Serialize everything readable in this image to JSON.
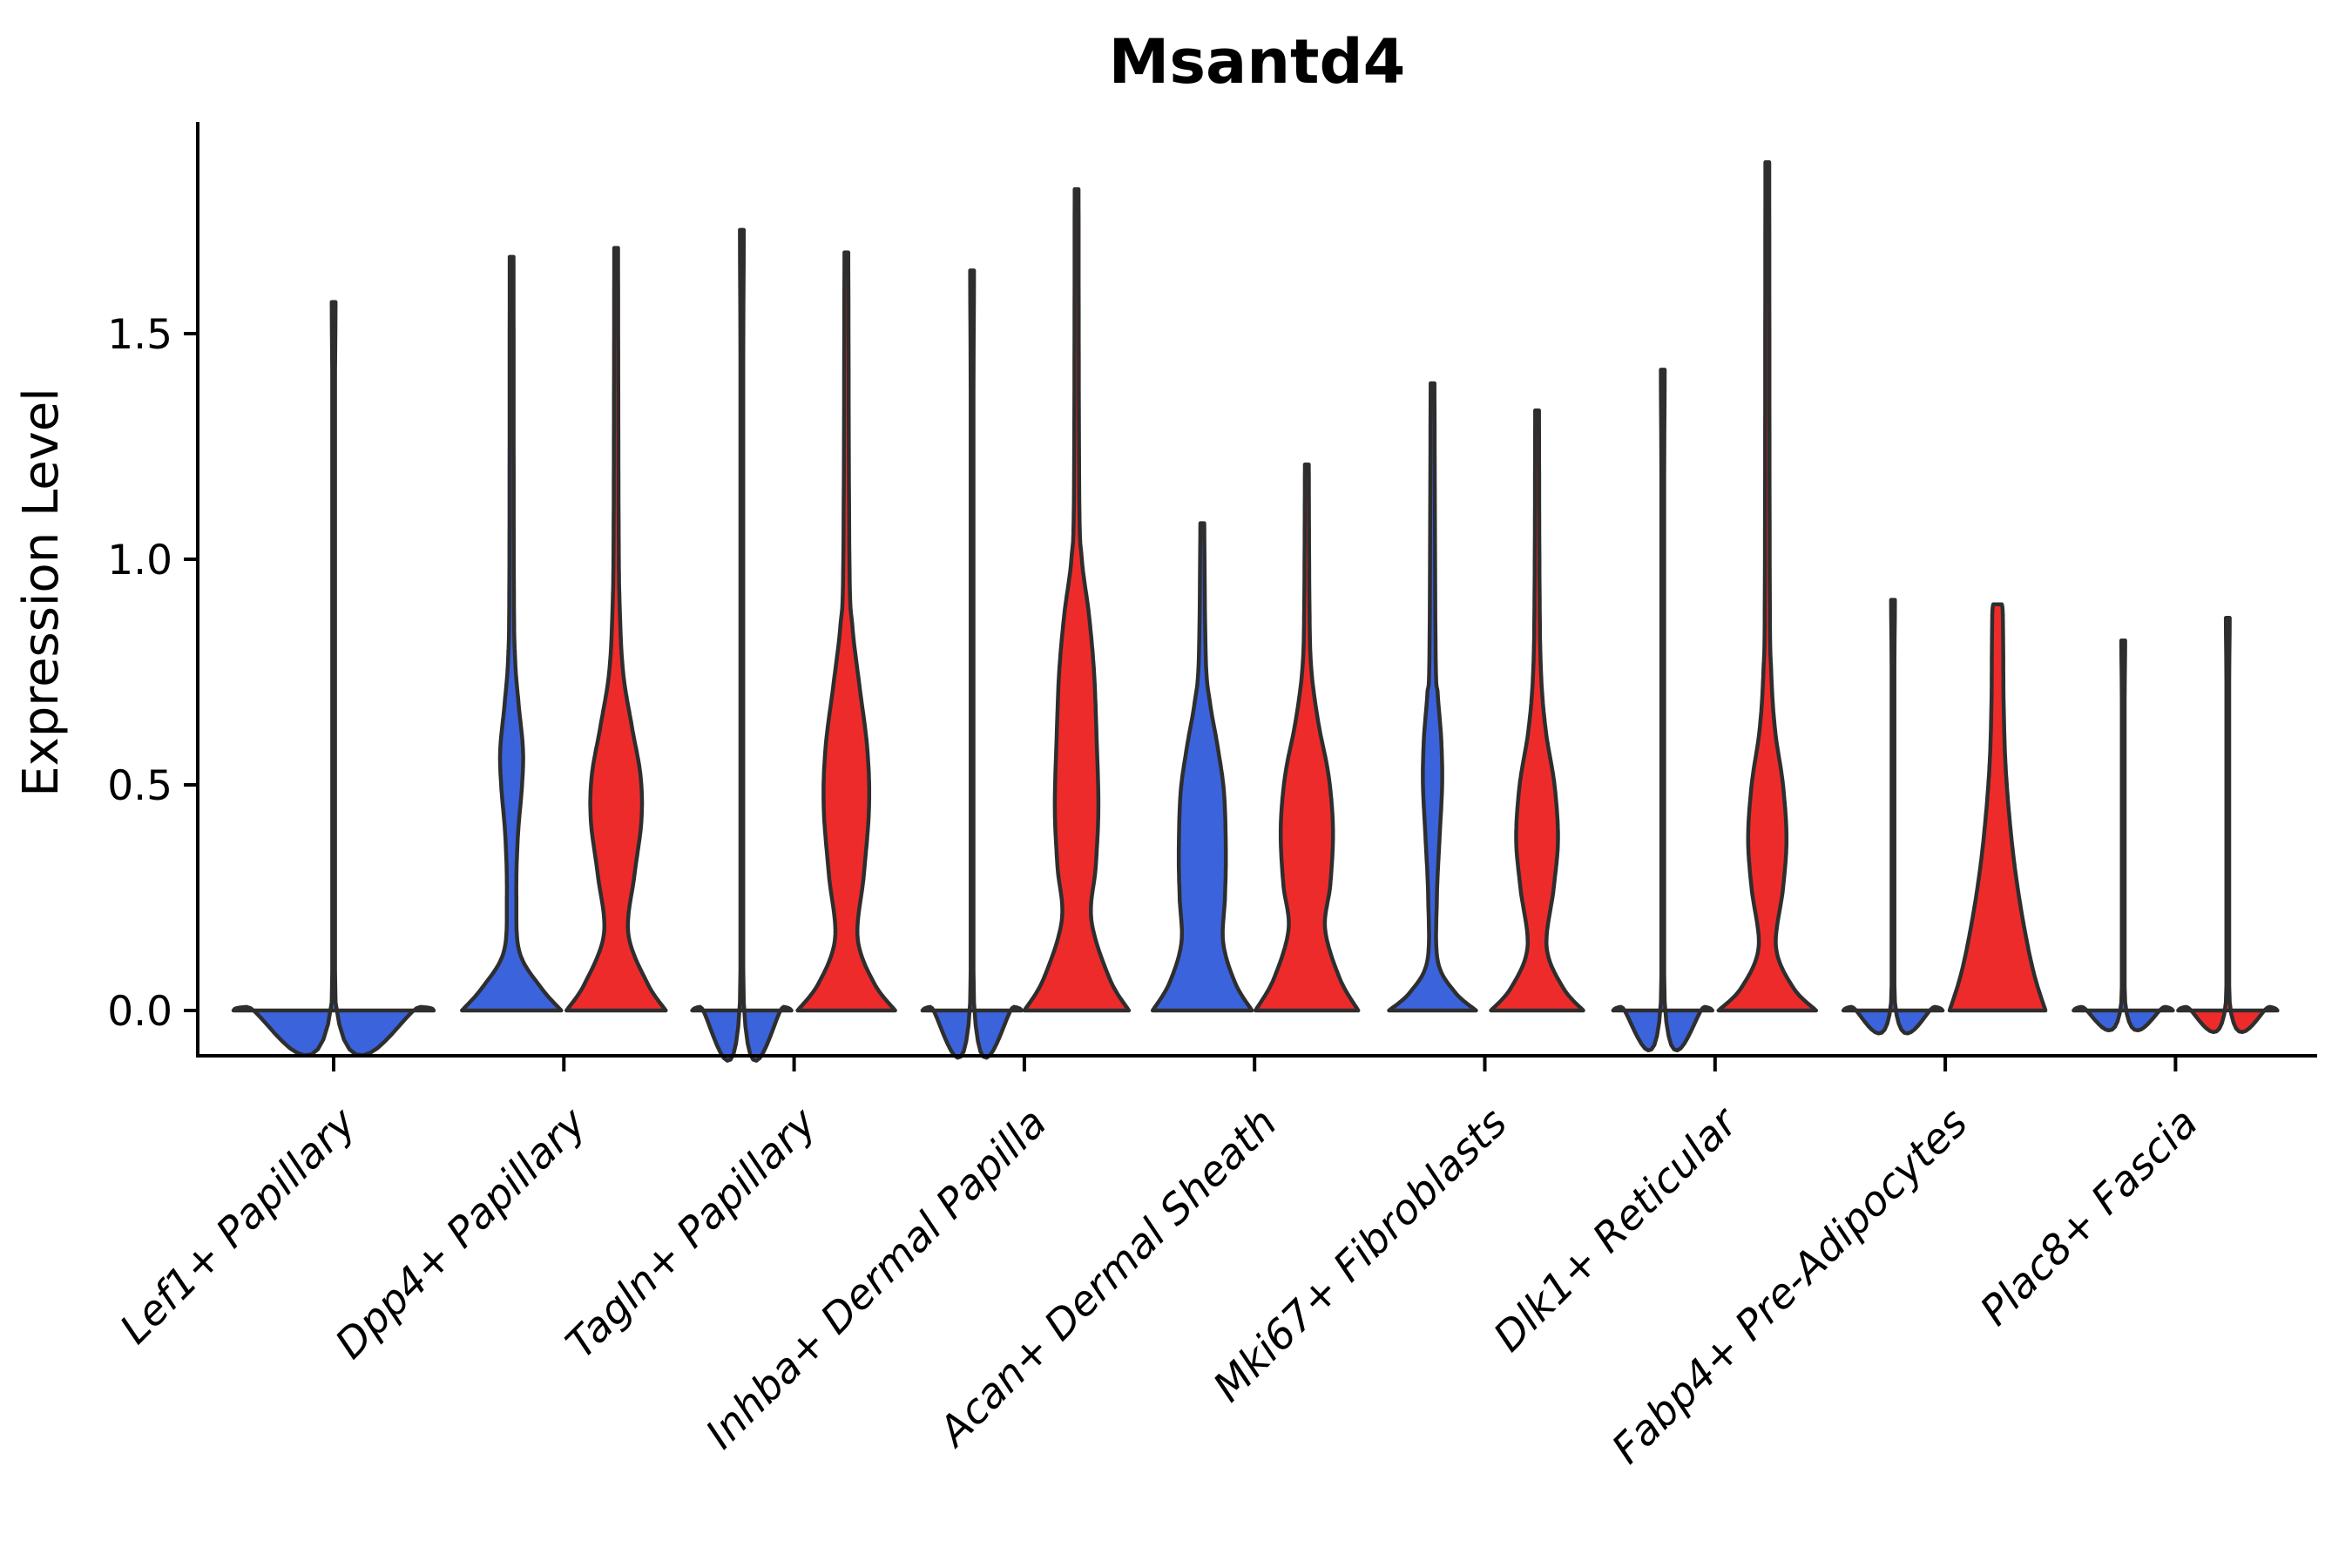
{
  "title": "Msantd4",
  "y_axis": {
    "label": "Expression Level",
    "tick_labels": [
      "0.0",
      "0.5",
      "1.0",
      "1.5"
    ]
  },
  "colors": {
    "split_left_blue": "#3B63DC",
    "split_right_red": "#EE2B2B",
    "violin_outline": "#2E2E2E",
    "axis": "#000000",
    "background": "#ffffff"
  },
  "chart_data": {
    "type": "violin",
    "title": "Msantd4",
    "xlabel": "",
    "ylabel": "Expression Level",
    "ylim": [
      0,
      1.96
    ],
    "yticks": [
      0.0,
      0.5,
      1.0,
      1.5
    ],
    "ytick_labels": [
      "0.0",
      "0.5",
      "1.0",
      "1.5"
    ],
    "x_tick_rotation_deg": 45,
    "grid": false,
    "legend_position": "none",
    "categories": [
      "Lef1+ Papillary",
      "Dpp4+ Papillary",
      "Tagln+ Papillary",
      "Inhba+ Dermal Papilla",
      "Acan+ Dermal Sheath",
      "Mki67+ Fibroblasts",
      "Dlk1+ Reticular",
      "Fabp4+ Pre-Adipocytes",
      "Plac8+ Fascia"
    ],
    "profile_units": "pairs of [expression_value, half_width_px]; half_width 57px = full split-violin slot, 115px = full-width violin",
    "groups": [
      {
        "category": "Lef1+ Papillary",
        "violins": [
          {
            "side": "full",
            "color": "#3B63DC",
            "max": 1.57,
            "profile": [
              [
                0,
                115
              ],
              [
                0.008,
                100
              ],
              [
                0.018,
                2.2
              ],
              [
                1.57,
                2.2
              ]
            ]
          }
        ]
      },
      {
        "category": "Dpp4+ Papillary",
        "violins": [
          {
            "side": "left",
            "color": "#3B63DC",
            "max": 1.67,
            "profile": [
              [
                0,
                57
              ],
              [
                0.05,
                34
              ],
              [
                0.13,
                9
              ],
              [
                0.25,
                5.5
              ],
              [
                0.38,
                7
              ],
              [
                0.5,
                12
              ],
              [
                0.58,
                13
              ],
              [
                0.68,
                8
              ],
              [
                0.78,
                4
              ],
              [
                0.95,
                2.6
              ],
              [
                1.67,
                2.2
              ]
            ]
          },
          {
            "side": "right",
            "color": "#EE2B2B",
            "max": 1.69,
            "profile": [
              [
                0,
                57
              ],
              [
                0.06,
                36
              ],
              [
                0.17,
                14
              ],
              [
                0.3,
                21
              ],
              [
                0.42,
                29
              ],
              [
                0.52,
                28
              ],
              [
                0.63,
                18
              ],
              [
                0.75,
                8
              ],
              [
                0.9,
                4
              ],
              [
                1.1,
                2.8
              ],
              [
                1.69,
                2.2
              ]
            ]
          }
        ]
      },
      {
        "category": "Tagln+ Papillary",
        "violins": [
          {
            "side": "left",
            "color": "#3B63DC",
            "max": 1.73,
            "profile": [
              [
                0,
                57
              ],
              [
                0.008,
                48
              ],
              [
                0.018,
                2.2
              ],
              [
                1.73,
                2.2
              ]
            ]
          },
          {
            "side": "right",
            "color": "#EE2B2B",
            "max": 1.68,
            "profile": [
              [
                0,
                56
              ],
              [
                0.06,
                32
              ],
              [
                0.16,
                13
              ],
              [
                0.3,
                20
              ],
              [
                0.45,
                26
              ],
              [
                0.58,
                24
              ],
              [
                0.72,
                15
              ],
              [
                0.85,
                7
              ],
              [
                1.0,
                3.5
              ],
              [
                1.68,
                2.2
              ]
            ]
          }
        ]
      },
      {
        "category": "Inhba+ Dermal Papilla",
        "violins": [
          {
            "side": "left",
            "color": "#3B63DC",
            "max": 1.64,
            "profile": [
              [
                0,
                57
              ],
              [
                0.008,
                48
              ],
              [
                0.018,
                2.2
              ],
              [
                1.64,
                2.2
              ]
            ]
          },
          {
            "side": "right",
            "color": "#EE2B2B",
            "max": 1.82,
            "profile": [
              [
                0,
                60
              ],
              [
                0.07,
                38
              ],
              [
                0.2,
                17
              ],
              [
                0.32,
                22
              ],
              [
                0.45,
                25
              ],
              [
                0.6,
                23
              ],
              [
                0.75,
                20
              ],
              [
                0.88,
                14
              ],
              [
                1.0,
                6
              ],
              [
                1.15,
                3
              ],
              [
                1.82,
                2.2
              ]
            ]
          }
        ]
      },
      {
        "category": "Acan+ Dermal Sheath",
        "violins": [
          {
            "side": "left",
            "color": "#3B63DC",
            "max": 1.08,
            "profile": [
              [
                0,
                57
              ],
              [
                0.06,
                38
              ],
              [
                0.15,
                24
              ],
              [
                0.25,
                26
              ],
              [
                0.35,
                27
              ],
              [
                0.48,
                25
              ],
              [
                0.58,
                18
              ],
              [
                0.68,
                9
              ],
              [
                0.78,
                4
              ],
              [
                1.08,
                2.2
              ]
            ]
          },
          {
            "side": "right",
            "color": "#EE2B2B",
            "max": 1.21,
            "profile": [
              [
                0,
                59
              ],
              [
                0.07,
                38
              ],
              [
                0.18,
                21
              ],
              [
                0.28,
                27
              ],
              [
                0.4,
                30
              ],
              [
                0.52,
                25
              ],
              [
                0.64,
                13
              ],
              [
                0.76,
                5
              ],
              [
                0.9,
                3
              ],
              [
                1.21,
                2.2
              ]
            ]
          }
        ]
      },
      {
        "category": "Mki67+ Fibroblasts",
        "violins": [
          {
            "side": "left",
            "color": "#3B63DC",
            "max": 1.39,
            "profile": [
              [
                0,
                50
              ],
              [
                0.04,
                26
              ],
              [
                0.11,
                6
              ],
              [
                0.25,
                5
              ],
              [
                0.38,
                8
              ],
              [
                0.5,
                11
              ],
              [
                0.6,
                10
              ],
              [
                0.7,
                6
              ],
              [
                0.8,
                3.5
              ],
              [
                1.39,
                2.2
              ]
            ]
          },
          {
            "side": "right",
            "color": "#EE2B2B",
            "max": 1.33,
            "profile": [
              [
                0,
                53
              ],
              [
                0.05,
                30
              ],
              [
                0.14,
                11
              ],
              [
                0.27,
                19
              ],
              [
                0.38,
                24
              ],
              [
                0.5,
                20
              ],
              [
                0.62,
                10
              ],
              [
                0.75,
                4.5
              ],
              [
                0.95,
                2.8
              ],
              [
                1.33,
                2.2
              ]
            ]
          }
        ]
      },
      {
        "category": "Dlk1+ Reticular",
        "violins": [
          {
            "side": "left",
            "color": "#3B63DC",
            "max": 1.42,
            "profile": [
              [
                0,
                57
              ],
              [
                0.008,
                48
              ],
              [
                0.018,
                2.2
              ],
              [
                1.42,
                2.2
              ]
            ]
          },
          {
            "side": "right",
            "color": "#EE2B2B",
            "max": 1.88,
            "profile": [
              [
                0,
                56
              ],
              [
                0.05,
                30
              ],
              [
                0.14,
                10
              ],
              [
                0.27,
                18
              ],
              [
                0.38,
                22
              ],
              [
                0.5,
                18
              ],
              [
                0.62,
                9
              ],
              [
                0.75,
                4.5
              ],
              [
                0.95,
                2.8
              ],
              [
                1.88,
                2.2
              ]
            ]
          }
        ]
      },
      {
        "category": "Fabp4+ Pre-Adipocytes",
        "violins": [
          {
            "side": "left",
            "color": "#3B63DC",
            "max": 0.91,
            "profile": [
              [
                0,
                57
              ],
              [
                0.008,
                48
              ],
              [
                0.018,
                2.2
              ],
              [
                0.91,
                2.2
              ]
            ]
          },
          {
            "side": "right",
            "color": "#EE2B2B",
            "max": 0.9,
            "profile": [
              [
                0,
                55
              ],
              [
                0.08,
                42
              ],
              [
                0.18,
                31
              ],
              [
                0.3,
                21
              ],
              [
                0.42,
                14
              ],
              [
                0.55,
                9
              ],
              [
                0.68,
                7
              ],
              [
                0.8,
                6.5
              ],
              [
                0.88,
                6
              ],
              [
                0.9,
                5
              ]
            ]
          }
        ]
      },
      {
        "category": "Plac8+ Fascia",
        "violins": [
          {
            "side": "left",
            "color": "#3B63DC",
            "max": 0.82,
            "profile": [
              [
                0,
                57
              ],
              [
                0.008,
                48
              ],
              [
                0.018,
                2.2
              ],
              [
                0.82,
                2.2
              ]
            ]
          },
          {
            "side": "right",
            "color": "#EE2B2B",
            "max": 0.87,
            "profile": [
              [
                0,
                57
              ],
              [
                0.008,
                48
              ],
              [
                0.018,
                2.2
              ],
              [
                0.87,
                2.2
              ]
            ]
          }
        ]
      }
    ]
  }
}
